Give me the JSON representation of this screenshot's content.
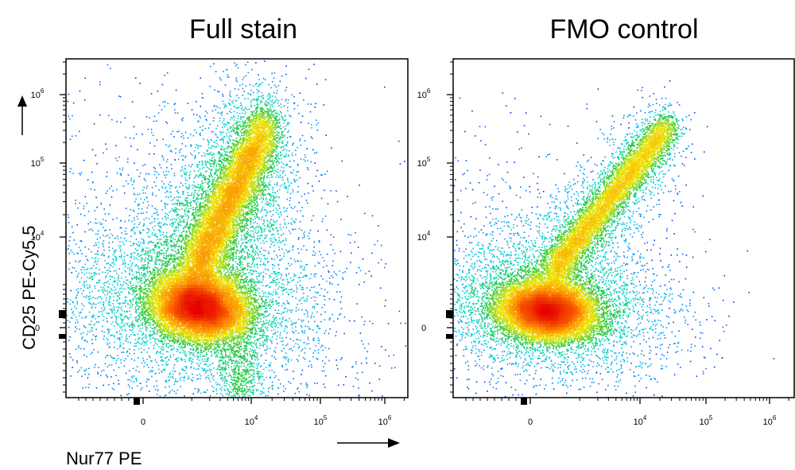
{
  "figure": {
    "x_axis_label": "Nur77 PE",
    "y_axis_label": "CD25 PE-Cy5.5"
  },
  "chart_data": [
    {
      "type": "scatter",
      "subtype": "flow-cytometry-density-plot",
      "title": "Full stain",
      "xlabel": "Nur77 PE",
      "ylabel": "CD25 PE-Cy5.5",
      "x_scale": "biexponential",
      "y_scale": "biexponential",
      "x_ticks": [
        {
          "value": 0,
          "base": "0",
          "exp": ""
        },
        {
          "value": 10000,
          "base": "10",
          "exp": "4"
        },
        {
          "value": 100000,
          "base": "10",
          "exp": "5"
        },
        {
          "value": 1000000,
          "base": "10",
          "exp": "6"
        }
      ],
      "y_ticks": [
        {
          "value": 0,
          "base": "0",
          "exp": ""
        },
        {
          "value": 10000,
          "base": "10",
          "exp": "4"
        },
        {
          "value": 100000,
          "base": "10",
          "exp": "5"
        },
        {
          "value": 1000000,
          "base": "10",
          "exp": "6"
        }
      ],
      "populations": [
        {
          "name": "main",
          "center_x_log": 2.8,
          "center_y_log": 2.0,
          "relative_density": "high"
        },
        {
          "name": "diagonal-cd25-high",
          "from_log": [
            3.1,
            3.3
          ],
          "to_log": [
            4.2,
            5.4
          ],
          "relative_density": "medium"
        },
        {
          "name": "negative-tail",
          "center_x_log": 3.5,
          "center_y_log": -0.4,
          "relative_density": "low"
        }
      ]
    },
    {
      "type": "scatter",
      "subtype": "flow-cytometry-density-plot",
      "title": "FMO control",
      "xlabel": "Nur77 PE",
      "ylabel": "CD25 PE-Cy5.5",
      "x_scale": "biexponential",
      "y_scale": "biexponential",
      "x_ticks": [
        {
          "value": 0,
          "base": "0",
          "exp": ""
        },
        {
          "value": 10000,
          "base": "10",
          "exp": "4"
        },
        {
          "value": 100000,
          "base": "10",
          "exp": "5"
        },
        {
          "value": 1000000,
          "base": "10",
          "exp": "6"
        }
      ],
      "y_ticks": [
        {
          "value": 0,
          "base": "0",
          "exp": ""
        },
        {
          "value": 10000,
          "base": "10",
          "exp": "4"
        },
        {
          "value": 100000,
          "base": "10",
          "exp": "5"
        },
        {
          "value": 1000000,
          "base": "10",
          "exp": "6"
        }
      ],
      "populations": [
        {
          "name": "main",
          "center_x_log": 1.0,
          "center_y_log": 1.9,
          "relative_density": "high"
        },
        {
          "name": "diagonal-cd25-high",
          "from_log": [
            2.5,
            3.3
          ],
          "to_log": [
            4.6,
            5.5
          ],
          "relative_density": "medium"
        }
      ]
    }
  ]
}
